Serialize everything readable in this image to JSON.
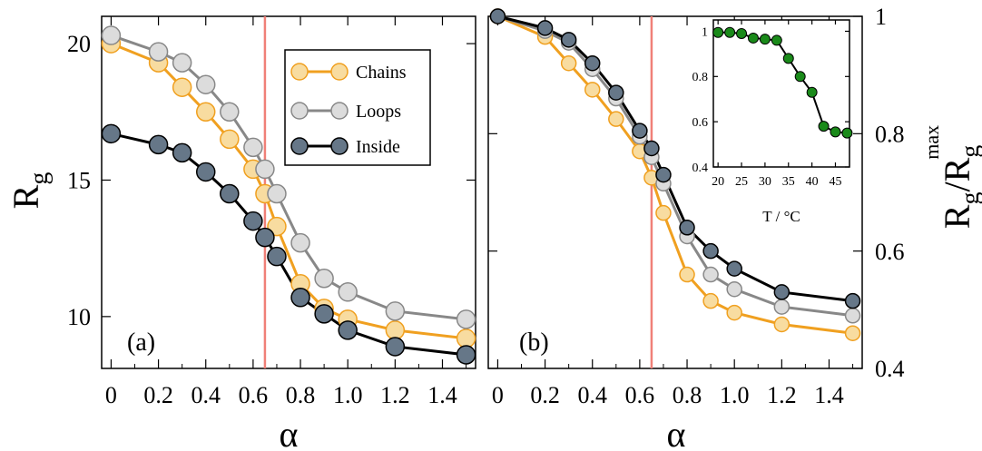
{
  "chart_data": [
    {
      "panel_label": "(a)",
      "type": "line",
      "xlabel": "α",
      "ylabel": "R",
      "ylabel_sub": "g",
      "xlim": [
        -0.04,
        1.54
      ],
      "ylim": [
        8.1,
        21.0
      ],
      "xticks": [
        0,
        0.2,
        0.4,
        0.6,
        0.8,
        1.0,
        1.2,
        1.4
      ],
      "xtick_labels": [
        "0",
        "0.2",
        "0.4",
        "0.6",
        "0.8",
        "1.0",
        "1.2",
        "1.4"
      ],
      "yticks": [
        10,
        15,
        20
      ],
      "ytick_labels": [
        "10",
        "15",
        "20"
      ],
      "vline_x": 0.65,
      "vline_color": "#f08078",
      "legend_position": "top-right",
      "series": [
        {
          "name": "Chains",
          "color": "#f0a020",
          "fill": "#f8dca0",
          "x": [
            0,
            0.2,
            0.3,
            0.4,
            0.5,
            0.6,
            0.65,
            0.7,
            0.8,
            0.9,
            1.0,
            1.2,
            1.5
          ],
          "y": [
            20.0,
            19.3,
            18.4,
            17.5,
            16.5,
            15.4,
            14.5,
            13.3,
            11.2,
            10.3,
            9.9,
            9.5,
            9.2
          ]
        },
        {
          "name": "Loops",
          "color": "#888888",
          "fill": "#dcdcdc",
          "x": [
            0,
            0.2,
            0.3,
            0.4,
            0.5,
            0.6,
            0.65,
            0.7,
            0.8,
            0.9,
            1.0,
            1.2,
            1.5
          ],
          "y": [
            20.3,
            19.7,
            19.3,
            18.5,
            17.5,
            16.2,
            15.4,
            14.5,
            12.7,
            11.4,
            10.9,
            10.2,
            9.9
          ]
        },
        {
          "name": "Inside",
          "color": "#000000",
          "fill": "#667788",
          "x": [
            0,
            0.2,
            0.3,
            0.4,
            0.5,
            0.6,
            0.65,
            0.7,
            0.8,
            0.9,
            1.0,
            1.2,
            1.5
          ],
          "y": [
            16.7,
            16.3,
            16.0,
            15.3,
            14.5,
            13.5,
            12.9,
            12.2,
            10.7,
            10.1,
            9.5,
            8.9,
            8.6
          ]
        }
      ]
    },
    {
      "panel_label": "(b)",
      "type": "line",
      "xlabel": "α",
      "ylabel": "R",
      "ylabel_sub": "g",
      "ylabel_mid": "/R",
      "ylabel_sub2": "g",
      "ylabel_sup": "max",
      "xlim": [
        -0.04,
        1.54
      ],
      "ylim": [
        0.4,
        1.0
      ],
      "xticks": [
        0,
        0.2,
        0.4,
        0.6,
        0.8,
        1.0,
        1.2,
        1.4
      ],
      "xtick_labels": [
        "0",
        "0.2",
        "0.4",
        "0.6",
        "0.8",
        "1.0",
        "1.2",
        "1.4"
      ],
      "yticks": [
        0.4,
        0.6,
        0.8,
        1.0
      ],
      "ytick_labels": [
        "0.4",
        "0.6",
        "0.8",
        "1"
      ],
      "vline_x": 0.65,
      "vline_color": "#f08078",
      "series": [
        {
          "name": "Chains",
          "color": "#f0a020",
          "fill": "#f8dca0",
          "x": [
            0,
            0.2,
            0.3,
            0.4,
            0.5,
            0.6,
            0.65,
            0.7,
            0.8,
            0.9,
            1.0,
            1.2,
            1.5
          ],
          "y": [
            1.0,
            0.965,
            0.92,
            0.875,
            0.825,
            0.77,
            0.725,
            0.665,
            0.56,
            0.515,
            0.495,
            0.475,
            0.46
          ]
        },
        {
          "name": "Loops",
          "color": "#888888",
          "fill": "#dcdcdc",
          "x": [
            0,
            0.2,
            0.3,
            0.4,
            0.5,
            0.6,
            0.65,
            0.7,
            0.8,
            0.9,
            1.0,
            1.2,
            1.5
          ],
          "y": [
            1.0,
            0.975,
            0.955,
            0.91,
            0.86,
            0.795,
            0.76,
            0.715,
            0.625,
            0.56,
            0.535,
            0.505,
            0.49
          ]
        },
        {
          "name": "Inside",
          "color": "#000000",
          "fill": "#667788",
          "x": [
            0,
            0.2,
            0.3,
            0.4,
            0.5,
            0.6,
            0.65,
            0.7,
            0.8,
            0.9,
            1.0,
            1.2,
            1.5
          ],
          "y": [
            1.0,
            0.98,
            0.96,
            0.92,
            0.87,
            0.805,
            0.775,
            0.73,
            0.64,
            0.6,
            0.57,
            0.53,
            0.515
          ]
        }
      ]
    },
    {
      "panel_label": "inset",
      "type": "line",
      "xlabel": "T / °C",
      "ylabel": "",
      "xlim": [
        19,
        48
      ],
      "ylim": [
        0.4,
        1.05
      ],
      "xticks": [
        20,
        25,
        30,
        35,
        40,
        45
      ],
      "xtick_labels": [
        "20",
        "25",
        "30",
        "35",
        "40",
        "45"
      ],
      "yticks": [
        0.4,
        0.6,
        0.8,
        1.0
      ],
      "ytick_labels": [
        "0.4",
        "0.6",
        "0.8",
        "1"
      ],
      "series": [
        {
          "name": "",
          "color": "#000000",
          "fill": "#1a8a1a",
          "x": [
            20,
            22.5,
            25,
            27.5,
            30,
            32.5,
            35,
            37.5,
            40,
            42.5,
            45,
            47.5
          ],
          "y": [
            0.995,
            0.995,
            0.99,
            0.97,
            0.965,
            0.96,
            0.88,
            0.8,
            0.73,
            0.58,
            0.555,
            0.55
          ]
        }
      ]
    }
  ]
}
